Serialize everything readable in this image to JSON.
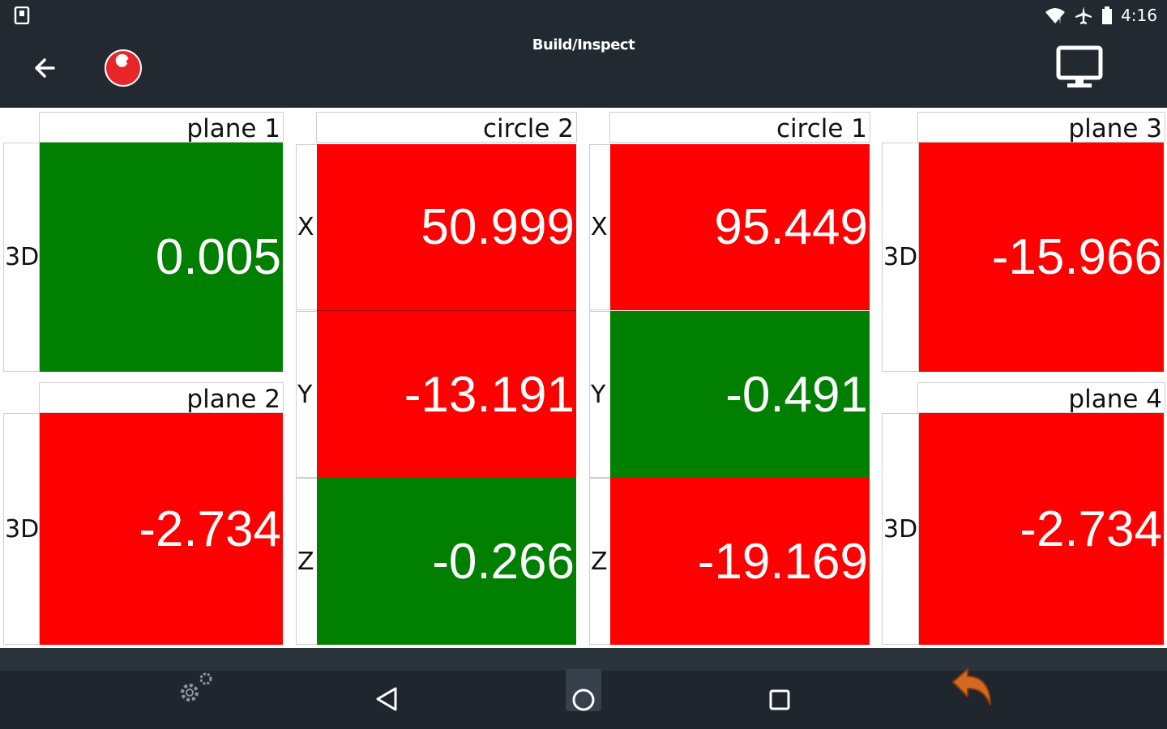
{
  "status": {
    "time": "4:16"
  },
  "header": {
    "title": "Build/Inspect"
  },
  "features": {
    "plane1": {
      "name": "plane 1",
      "axis": "3D",
      "value": "0.005",
      "state": "green"
    },
    "plane2": {
      "name": "plane 2",
      "axis": "3D",
      "value": "-2.734",
      "state": "red"
    },
    "circle2": {
      "name": "circle 2",
      "rows": [
        {
          "axis": "X",
          "value": "50.999",
          "state": "red"
        },
        {
          "axis": "Y",
          "value": "-13.191",
          "state": "red"
        },
        {
          "axis": "Z",
          "value": "-0.266",
          "state": "green"
        }
      ]
    },
    "circle1": {
      "name": "circle 1",
      "rows": [
        {
          "axis": "X",
          "value": "95.449",
          "state": "red"
        },
        {
          "axis": "Y",
          "value": "-0.491",
          "state": "green"
        },
        {
          "axis": "Z",
          "value": "-19.169",
          "state": "red"
        }
      ]
    },
    "plane3": {
      "name": "plane 3",
      "axis": "3D",
      "value": "-15.966",
      "state": "red"
    },
    "plane4": {
      "name": "plane 4",
      "axis": "3D",
      "value": "-2.734",
      "state": "red"
    }
  },
  "colors": {
    "pass": "#007f00",
    "fail": "#ff0000",
    "topbar": "#222931",
    "navbar": "#1f262d",
    "accent": "#e8262a"
  },
  "icons": {
    "status_left": "sim-icon",
    "status_right": [
      "wifi-icon",
      "airplane-icon",
      "battery-icon"
    ],
    "back": "back-arrow-icon",
    "logo": "app-logo-icon",
    "display": "monitor-icon",
    "settings": "gears-icon",
    "nav_back": "nav-back-icon",
    "nav_home": "nav-home-icon",
    "nav_recents": "nav-recents-icon",
    "undo": "undo-arrow-icon"
  }
}
